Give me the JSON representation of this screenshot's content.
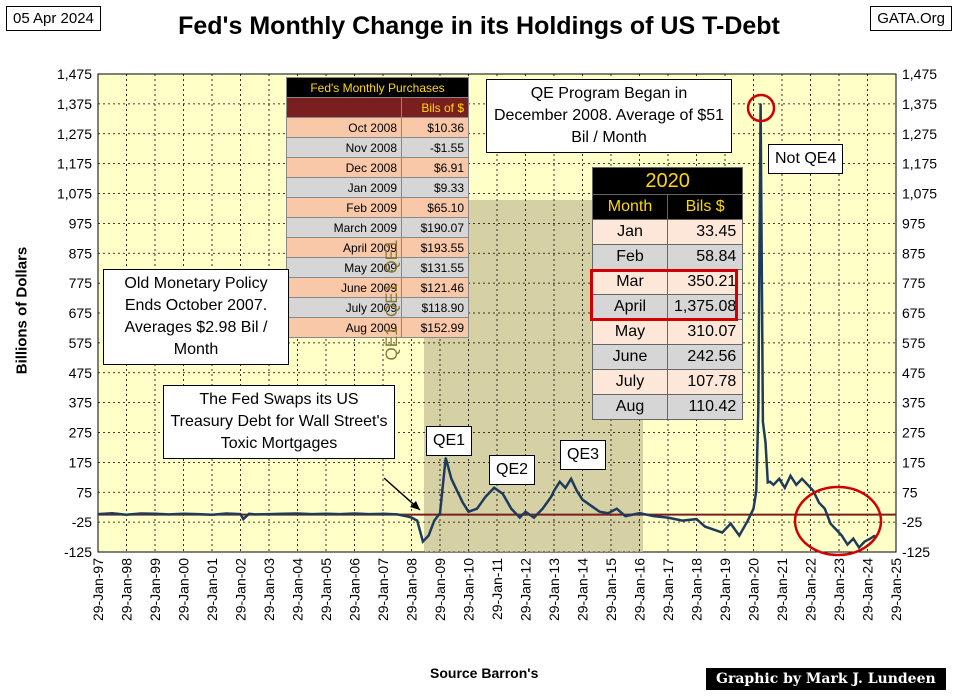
{
  "header": {
    "date": "05 Apr 2024",
    "site": "GATA.Org",
    "title": "Fed's Monthly Change in its Holdings of US T-Debt"
  },
  "chart_data": {
    "type": "line",
    "ylabel": "Billions of Dollars",
    "xlabel": "Source Barron's",
    "ylim": [
      -125,
      1475
    ],
    "yticks": [
      "1,475",
      "1,375",
      "1,275",
      "1,175",
      "1,075",
      "975",
      "875",
      "775",
      "675",
      "575",
      "475",
      "375",
      "275",
      "175",
      "75",
      "-25",
      "-125"
    ],
    "xticks": [
      "29-Jan-97",
      "29-Jan-98",
      "29-Jan-99",
      "29-Jan-00",
      "29-Jan-01",
      "29-Jan-02",
      "29-Jan-03",
      "29-Jan-04",
      "29-Jan-05",
      "29-Jan-06",
      "29-Jan-07",
      "29-Jan-08",
      "29-Jan-09",
      "29-Jan-10",
      "29-Jan-11",
      "29-Jan-12",
      "29-Jan-13",
      "29-Jan-14",
      "29-Jan-15",
      "29-Jan-16",
      "29-Jan-17",
      "29-Jan-18",
      "29-Jan-19",
      "29-Jan-20",
      "29-Jan-21",
      "29-Jan-22",
      "29-Jan-23",
      "29-Jan-24",
      "29-Jan-25"
    ],
    "grid": true,
    "reference_line": 0,
    "series": [
      {
        "color": "#1f3b5c",
        "x": [
          1997.0,
          1997.5,
          1998.0,
          1998.5,
          1999.0,
          1999.5,
          2000.0,
          2000.5,
          2001.0,
          2001.5,
          2002.0,
          2002.1,
          2002.3,
          2002.5,
          2003.0,
          2003.5,
          2004.0,
          2004.5,
          2005.0,
          2005.5,
          2006.0,
          2006.5,
          2007.0,
          2007.5,
          2007.8,
          2008.0,
          2008.2,
          2008.4,
          2008.6,
          2008.8,
          2009.0,
          2009.2,
          2009.4,
          2009.6,
          2009.8,
          2010.0,
          2010.3,
          2010.6,
          2010.9,
          2011.2,
          2011.5,
          2011.8,
          2012.0,
          2012.3,
          2012.6,
          2012.9,
          2013.0,
          2013.2,
          2013.4,
          2013.6,
          2013.8,
          2014.0,
          2014.3,
          2014.6,
          2014.9,
          2015.2,
          2015.5,
          2016.0,
          2016.5,
          2017.0,
          2017.5,
          2018.0,
          2018.3,
          2018.6,
          2018.9,
          2019.2,
          2019.5,
          2019.8,
          2020.0,
          2020.1,
          2020.17,
          2020.25,
          2020.33,
          2020.42,
          2020.5,
          2020.58,
          2020.7,
          2020.9,
          2021.1,
          2021.3,
          2021.5,
          2021.7,
          2021.9,
          2022.1,
          2022.3,
          2022.5,
          2022.7,
          2022.9,
          2023.1,
          2023.3,
          2023.5,
          2023.7,
          2023.9,
          2024.1,
          2024.25
        ],
        "values": [
          2,
          5,
          0,
          4,
          3,
          1,
          3,
          2,
          0,
          4,
          2,
          -15,
          3,
          1,
          2,
          3,
          4,
          2,
          3,
          2,
          4,
          2,
          3,
          1,
          -5,
          -10,
          -20,
          -90,
          -70,
          -20,
          5,
          190,
          120,
          80,
          40,
          10,
          20,
          60,
          90,
          70,
          20,
          -10,
          10,
          -10,
          20,
          60,
          80,
          110,
          90,
          120,
          80,
          50,
          30,
          10,
          5,
          20,
          -5,
          5,
          -5,
          -10,
          -20,
          -15,
          -40,
          -50,
          -60,
          -30,
          -70,
          -20,
          20,
          80,
          350,
          1375,
          310,
          242,
          108,
          110,
          100,
          120,
          90,
          130,
          100,
          120,
          100,
          80,
          40,
          20,
          -30,
          -50,
          -70,
          -100,
          -80,
          -110,
          -90,
          -80,
          -70
        ]
      }
    ],
    "annotations": [
      "Old Monetary Policy Ends October 2007. Averages $2.98 Bil / Month",
      "The Fed Swaps its US Treasury Debt for Wall Street's Toxic Mortgages",
      "QE Program Began in December 2008. Average of $51 Bil / Month",
      "Not QE4",
      "QE1",
      "QE2",
      "QE3",
      "QE1  QE1  QE1"
    ]
  },
  "notes": {
    "old_policy": "Old Monetary Policy Ends October 2007. Averages $2.98 Bil / Month",
    "swap": "The Fed Swaps its US Treasury Debt for Wall Street's Toxic Mortgages",
    "qe_began": "QE Program Began in December 2008. Average of $51 Bil / Month",
    "not_qe4": "Not QE4",
    "qe1": "QE1",
    "qe2": "QE2",
    "qe3": "QE3",
    "qe1_vertical": "QE1  QE1  QE1"
  },
  "fed_table": {
    "title": "Fed's Monthly Purchases",
    "units": "Bils of $",
    "rows": [
      {
        "month": "Oct 2008",
        "value": "$10.36"
      },
      {
        "month": "Nov 2008",
        "value": "-$1.55"
      },
      {
        "month": "Dec 2008",
        "value": "$6.91"
      },
      {
        "month": "Jan 2009",
        "value": "$9.33"
      },
      {
        "month": "Feb 2009",
        "value": "$65.10"
      },
      {
        "month": "March 2009",
        "value": "$190.07"
      },
      {
        "month": "April 2009",
        "value": "$193.55"
      },
      {
        "month": "May 2009",
        "value": "$131.55"
      },
      {
        "month": "June 2009",
        "value": "$121.46"
      },
      {
        "month": "July 2009",
        "value": "$118.90"
      },
      {
        "month": "Aug 2009",
        "value": "$152.99"
      }
    ]
  },
  "table_2020": {
    "year": "2020",
    "col_month": "Month",
    "col_value": "Bils $",
    "rows": [
      {
        "month": "Jan",
        "value": "33.45"
      },
      {
        "month": "Feb",
        "value": "58.84"
      },
      {
        "month": "Mar",
        "value": "350.21"
      },
      {
        "month": "April",
        "value": "1,375.08"
      },
      {
        "month": "May",
        "value": "310.07"
      },
      {
        "month": "June",
        "value": "242.56"
      },
      {
        "month": "July",
        "value": "107.78"
      },
      {
        "month": "Aug",
        "value": "110.42"
      }
    ]
  },
  "footer": {
    "credit": "Graphic by Mark J. Lundeen"
  }
}
